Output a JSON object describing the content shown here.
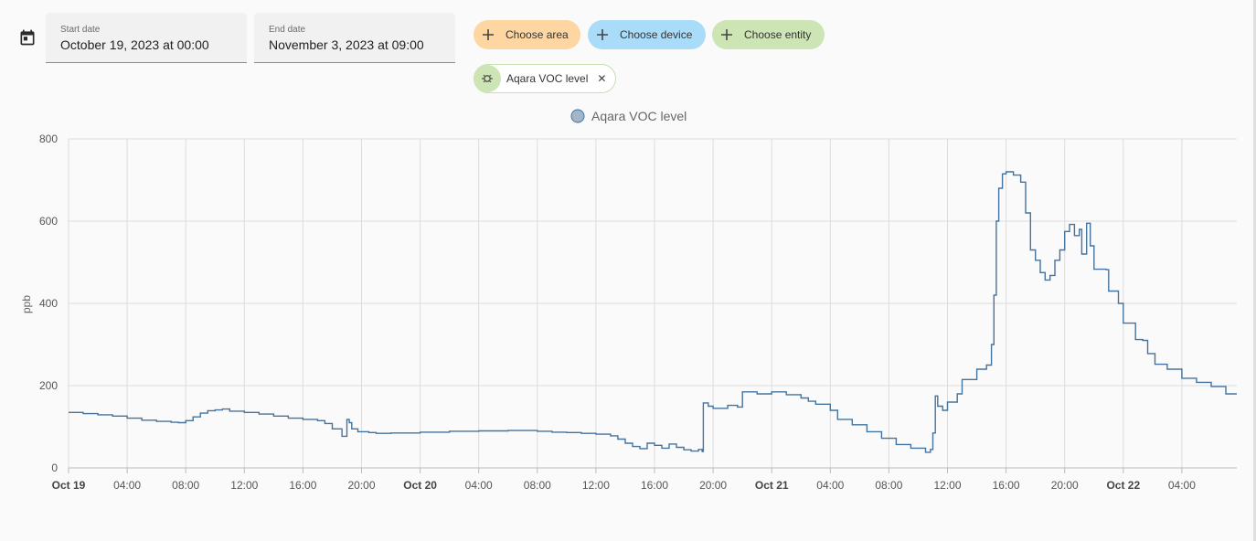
{
  "picker": {
    "start_label": "Start date",
    "start_value": "October 19, 2023 at 00:00",
    "end_label": "End date",
    "end_value": "November 3, 2023 at 09:00"
  },
  "filters": {
    "area_label": "Choose area",
    "device_label": "Choose device",
    "entity_label": "Choose entity",
    "selected_entity": "Aqara VOC level"
  },
  "colors": {
    "series": "#44739e",
    "area_chip": "#fdd6a2",
    "device_chip": "#a9dcf8",
    "entity_chip": "#cde4b5"
  },
  "chart_data": {
    "type": "line",
    "legend": [
      "Aqara VOC level"
    ],
    "legend_position": "top-center",
    "ylabel": "ppb",
    "ylim": [
      0,
      800
    ],
    "yticks": [
      "0",
      "200",
      "400",
      "600",
      "800"
    ],
    "xlim": [
      "2023-10-19T00:00",
      "2023-10-22T07:45"
    ],
    "xticks": [
      {
        "t": "2023-10-19T00:00",
        "label": "Oct 19",
        "bold": true
      },
      {
        "t": "2023-10-19T04:00",
        "label": "04:00"
      },
      {
        "t": "2023-10-19T08:00",
        "label": "08:00"
      },
      {
        "t": "2023-10-19T12:00",
        "label": "12:00"
      },
      {
        "t": "2023-10-19T16:00",
        "label": "16:00"
      },
      {
        "t": "2023-10-19T20:00",
        "label": "20:00"
      },
      {
        "t": "2023-10-20T00:00",
        "label": "Oct 20",
        "bold": true
      },
      {
        "t": "2023-10-20T04:00",
        "label": "04:00"
      },
      {
        "t": "2023-10-20T08:00",
        "label": "08:00"
      },
      {
        "t": "2023-10-20T12:00",
        "label": "12:00"
      },
      {
        "t": "2023-10-20T16:00",
        "label": "16:00"
      },
      {
        "t": "2023-10-20T20:00",
        "label": "20:00"
      },
      {
        "t": "2023-10-21T00:00",
        "label": "Oct 21",
        "bold": true
      },
      {
        "t": "2023-10-21T04:00",
        "label": "04:00"
      },
      {
        "t": "2023-10-21T08:00",
        "label": "08:00"
      },
      {
        "t": "2023-10-21T12:00",
        "label": "12:00"
      },
      {
        "t": "2023-10-21T16:00",
        "label": "16:00"
      },
      {
        "t": "2023-10-21T20:00",
        "label": "20:00"
      },
      {
        "t": "2023-10-22T00:00",
        "label": "Oct 22",
        "bold": true
      },
      {
        "t": "2023-10-22T04:00",
        "label": "04:00"
      }
    ],
    "grid": true,
    "series": [
      {
        "name": "Aqara VOC level",
        "step": true,
        "points": [
          [
            "2023-10-19T00:00",
            135
          ],
          [
            "2023-10-19T01:00",
            132
          ],
          [
            "2023-10-19T02:00",
            129
          ],
          [
            "2023-10-19T03:00",
            126
          ],
          [
            "2023-10-19T04:00",
            121
          ],
          [
            "2023-10-19T05:00",
            116
          ],
          [
            "2023-10-19T06:00",
            113
          ],
          [
            "2023-10-19T07:00",
            111
          ],
          [
            "2023-10-19T07:30",
            110
          ],
          [
            "2023-10-19T08:00",
            115
          ],
          [
            "2023-10-19T08:30",
            124
          ],
          [
            "2023-10-19T09:00",
            133
          ],
          [
            "2023-10-19T09:30",
            139
          ],
          [
            "2023-10-19T10:00",
            141
          ],
          [
            "2023-10-19T10:30",
            143
          ],
          [
            "2023-10-19T11:00",
            138
          ],
          [
            "2023-10-19T12:00",
            135
          ],
          [
            "2023-10-19T13:00",
            131
          ],
          [
            "2023-10-19T14:00",
            126
          ],
          [
            "2023-10-19T15:00",
            121
          ],
          [
            "2023-10-19T16:00",
            118
          ],
          [
            "2023-10-19T17:00",
            115
          ],
          [
            "2023-10-19T17:30",
            108
          ],
          [
            "2023-10-19T18:00",
            95
          ],
          [
            "2023-10-19T18:40",
            77
          ],
          [
            "2023-10-19T19:00",
            118
          ],
          [
            "2023-10-19T19:10",
            110
          ],
          [
            "2023-10-19T19:20",
            95
          ],
          [
            "2023-10-19T19:45",
            88
          ],
          [
            "2023-10-19T20:30",
            86
          ],
          [
            "2023-10-19T21:00",
            84
          ],
          [
            "2023-10-19T22:00",
            85
          ],
          [
            "2023-10-20T00:00",
            87
          ],
          [
            "2023-10-20T02:00",
            89
          ],
          [
            "2023-10-20T04:00",
            90
          ],
          [
            "2023-10-20T06:00",
            91
          ],
          [
            "2023-10-20T08:00",
            89
          ],
          [
            "2023-10-20T09:00",
            87
          ],
          [
            "2023-10-20T10:00",
            86
          ],
          [
            "2023-10-20T11:00",
            84
          ],
          [
            "2023-10-20T12:00",
            82
          ],
          [
            "2023-10-20T13:00",
            78
          ],
          [
            "2023-10-20T13:30",
            70
          ],
          [
            "2023-10-20T14:00",
            60
          ],
          [
            "2023-10-20T14:30",
            52
          ],
          [
            "2023-10-20T15:00",
            47
          ],
          [
            "2023-10-20T15:30",
            60
          ],
          [
            "2023-10-20T16:00",
            55
          ],
          [
            "2023-10-20T16:30",
            48
          ],
          [
            "2023-10-20T17:00",
            58
          ],
          [
            "2023-10-20T17:30",
            50
          ],
          [
            "2023-10-20T18:00",
            44
          ],
          [
            "2023-10-20T18:30",
            41
          ],
          [
            "2023-10-20T19:00",
            45
          ],
          [
            "2023-10-20T19:15",
            40
          ],
          [
            "2023-10-20T19:20",
            158
          ],
          [
            "2023-10-20T19:40",
            150
          ],
          [
            "2023-10-20T20:00",
            145
          ],
          [
            "2023-10-20T21:00",
            152
          ],
          [
            "2023-10-20T21:40",
            148
          ],
          [
            "2023-10-20T22:00",
            185
          ],
          [
            "2023-10-20T23:00",
            180
          ],
          [
            "2023-10-21T00:00",
            185
          ],
          [
            "2023-10-21T01:00",
            178
          ],
          [
            "2023-10-21T02:00",
            170
          ],
          [
            "2023-10-21T02:30",
            162
          ],
          [
            "2023-10-21T03:00",
            155
          ],
          [
            "2023-10-21T04:00",
            140
          ],
          [
            "2023-10-21T04:30",
            118
          ],
          [
            "2023-10-21T05:30",
            105
          ],
          [
            "2023-10-21T06:30",
            88
          ],
          [
            "2023-10-21T07:30",
            72
          ],
          [
            "2023-10-21T08:30",
            57
          ],
          [
            "2023-10-21T09:30",
            48
          ],
          [
            "2023-10-21T10:30",
            38
          ],
          [
            "2023-10-21T10:50",
            45
          ],
          [
            "2023-10-21T11:00",
            85
          ],
          [
            "2023-10-21T11:10",
            175
          ],
          [
            "2023-10-21T11:20",
            150
          ],
          [
            "2023-10-21T11:40",
            140
          ],
          [
            "2023-10-21T12:00",
            160
          ],
          [
            "2023-10-21T12:40",
            180
          ],
          [
            "2023-10-21T13:00",
            215
          ],
          [
            "2023-10-21T14:00",
            240
          ],
          [
            "2023-10-21T14:40",
            250
          ],
          [
            "2023-10-21T15:00",
            300
          ],
          [
            "2023-10-21T15:10",
            420
          ],
          [
            "2023-10-21T15:20",
            600
          ],
          [
            "2023-10-21T15:30",
            680
          ],
          [
            "2023-10-21T15:45",
            715
          ],
          [
            "2023-10-21T16:00",
            720
          ],
          [
            "2023-10-21T16:30",
            712
          ],
          [
            "2023-10-21T17:00",
            695
          ],
          [
            "2023-10-21T17:20",
            620
          ],
          [
            "2023-10-21T17:40",
            530
          ],
          [
            "2023-10-21T18:00",
            505
          ],
          [
            "2023-10-21T18:20",
            475
          ],
          [
            "2023-10-21T18:40",
            457
          ],
          [
            "2023-10-21T19:00",
            468
          ],
          [
            "2023-10-21T19:20",
            505
          ],
          [
            "2023-10-21T19:40",
            530
          ],
          [
            "2023-10-21T20:00",
            575
          ],
          [
            "2023-10-21T20:20",
            592
          ],
          [
            "2023-10-21T20:40",
            565
          ],
          [
            "2023-10-21T21:00",
            580
          ],
          [
            "2023-10-21T21:10",
            520
          ],
          [
            "2023-10-21T21:30",
            595
          ],
          [
            "2023-10-21T21:45",
            540
          ],
          [
            "2023-10-21T22:00",
            483
          ],
          [
            "2023-10-21T22:50",
            482
          ],
          [
            "2023-10-21T23:00",
            430
          ],
          [
            "2023-10-21T23:40",
            400
          ],
          [
            "2023-10-22T00:00",
            352
          ],
          [
            "2023-10-22T00:50",
            312
          ],
          [
            "2023-10-22T01:20",
            310
          ],
          [
            "2023-10-22T01:40",
            278
          ],
          [
            "2023-10-22T02:10",
            252
          ],
          [
            "2023-10-22T03:00",
            240
          ],
          [
            "2023-10-22T04:00",
            218
          ],
          [
            "2023-10-22T05:00",
            208
          ],
          [
            "2023-10-22T06:00",
            198
          ],
          [
            "2023-10-22T07:00",
            180
          ],
          [
            "2023-10-22T07:45",
            180
          ]
        ]
      }
    ]
  }
}
